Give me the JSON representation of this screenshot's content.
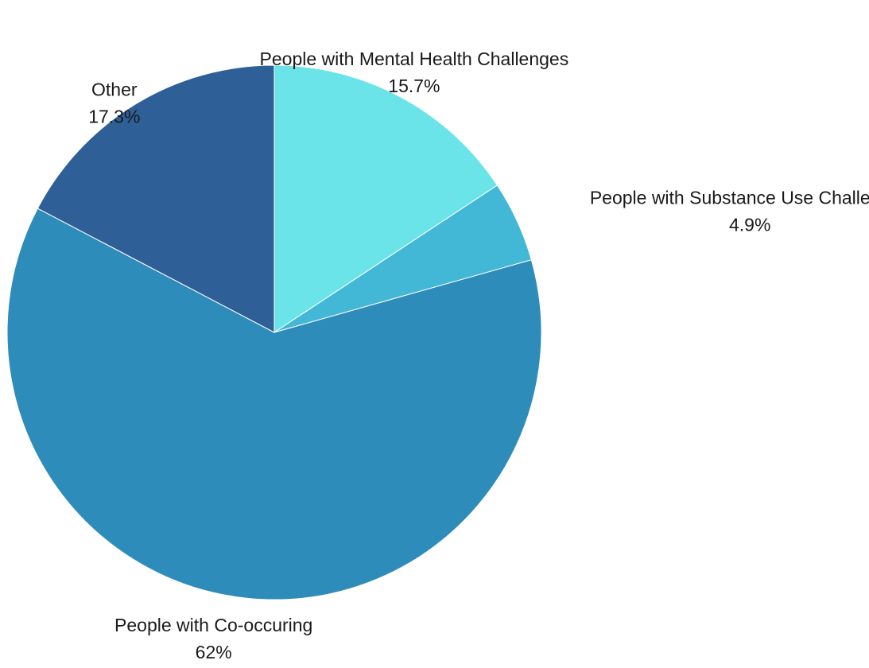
{
  "chart_data": {
    "type": "pie",
    "title": "",
    "slices": [
      {
        "label": "People with Mental Health Challenges",
        "value": 15.7,
        "value_label": "15.7%",
        "color": "#6ae4e8"
      },
      {
        "label": "People with Substance Use Challenges",
        "value": 4.9,
        "value_label": "4.9%",
        "color": "#43b7d6"
      },
      {
        "label": "People with Co-occuring",
        "value": 62,
        "value_label": "62%",
        "color": "#2e8cba"
      },
      {
        "label": "Other",
        "value": 17.3,
        "value_label": "17.3%",
        "color": "#2e5f96"
      }
    ],
    "start_angle": "12 o'clock",
    "direction": "clockwise",
    "legend": "none"
  }
}
